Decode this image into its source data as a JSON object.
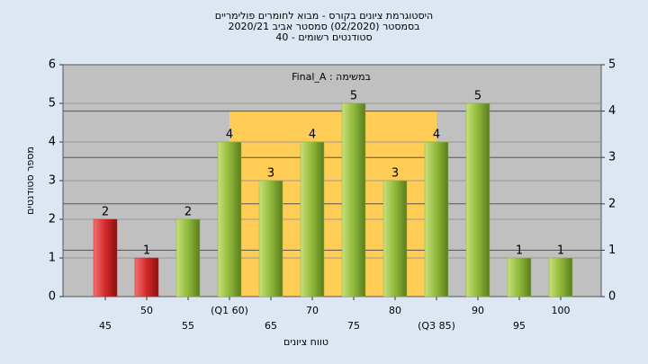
{
  "chart_data": {
    "type": "bar",
    "title": [
      "היסטוגרמת ציונים בקורס - מבוא לחומרים פולימריים",
      "בסמסטר (02/2020) סמסטר אביב 2020/21",
      "סטודנטים רשומים - 40"
    ],
    "annotation": "במשימה : Final_A",
    "xlabel": "טווח ציונים",
    "ylabel": "מספר סטודנטים",
    "categories": [
      "45",
      "50",
      "55",
      "(Q1 60)",
      "65",
      "70",
      "75",
      "80",
      "(Q3 85)",
      "90",
      "95",
      "100"
    ],
    "values": [
      2,
      1,
      2,
      4,
      3,
      4,
      5,
      3,
      4,
      5,
      1,
      1
    ],
    "colors": [
      "#d42a2a",
      "#d42a2a",
      "#8fb83a",
      "#8fb83a",
      "#8fb83a",
      "#8fb83a",
      "#8fb83a",
      "#8fb83a",
      "#8fb83a",
      "#8fb83a",
      "#8fb83a",
      "#8fb83a"
    ],
    "ylim": [
      0,
      6
    ],
    "yticks": [
      0,
      1,
      2,
      3,
      4,
      5,
      6
    ],
    "y2lim": [
      0,
      5
    ],
    "y2ticks": [
      0,
      1,
      2,
      3,
      4,
      5
    ],
    "iqr_box": {
      "start": 3,
      "end": 8,
      "height": 4,
      "axis": "y2",
      "color": "#ffcc55"
    },
    "grid": true
  }
}
